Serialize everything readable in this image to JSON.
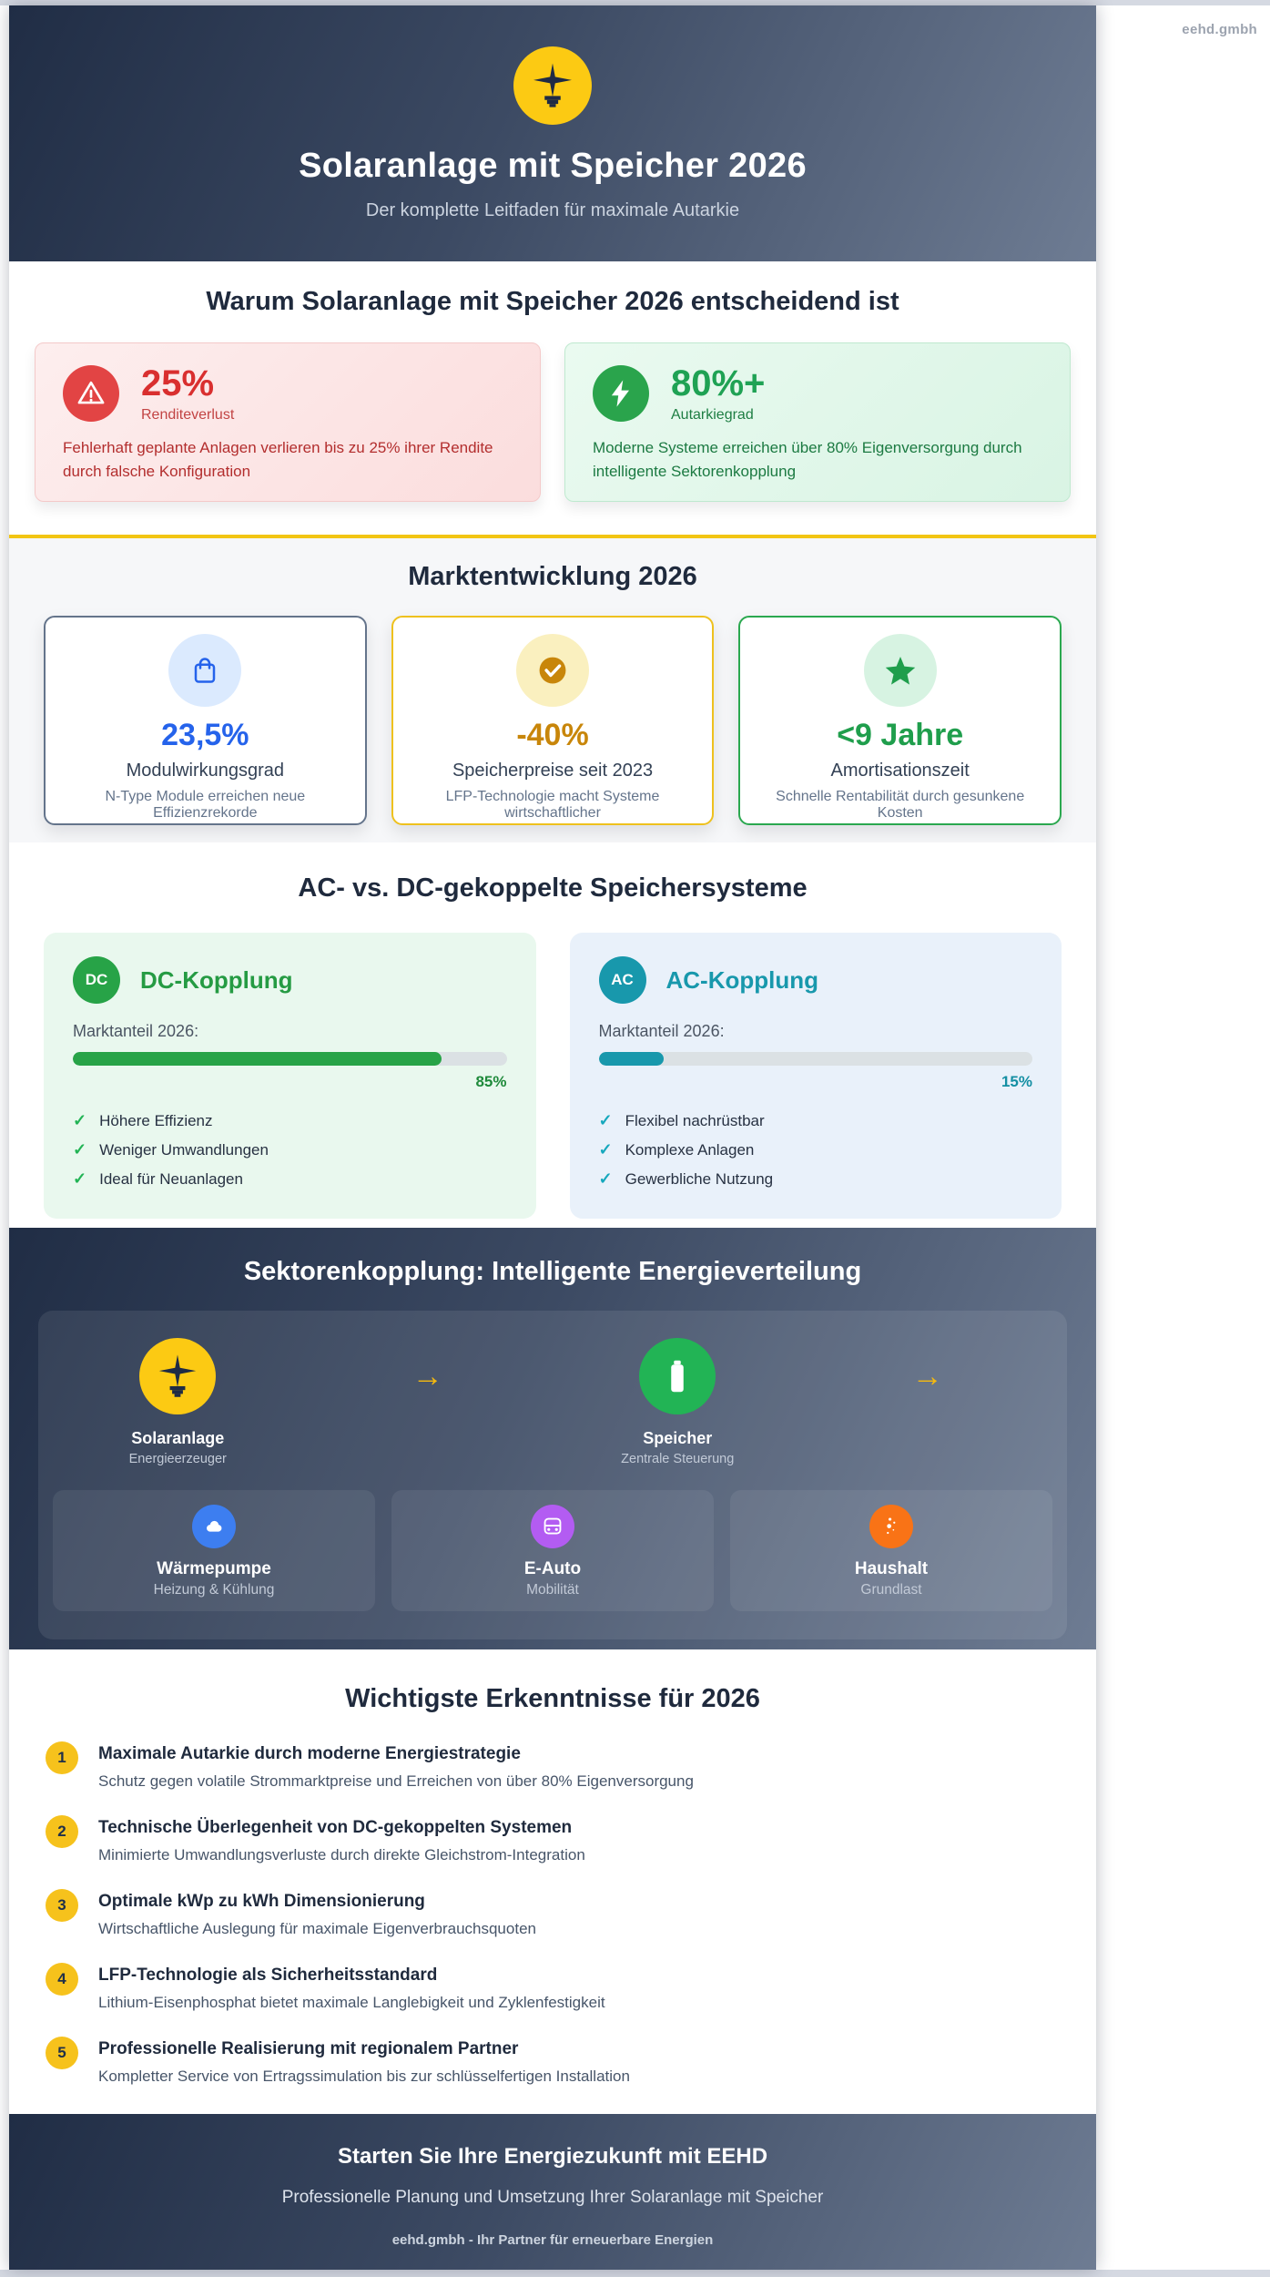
{
  "watermark": "eehd.gmbh",
  "glyphs": {
    "check": "✓",
    "arrow": "→"
  },
  "header": {
    "title": "Solaranlage mit Speicher 2026",
    "subtitle": "Der komplette Leitfaden für maximale Autarkie"
  },
  "why": {
    "heading": "Warum Solaranlage mit Speicher 2026 entscheidend ist",
    "risk": {
      "value": "25%",
      "label": "Renditeverlust",
      "desc": "Fehlerhaft geplante Anlagen verlieren bis zu 25% ihrer Rendite durch falsche Konfiguration"
    },
    "success": {
      "value": "80%+",
      "label": "Autarkiegrad",
      "desc": "Moderne Systeme erreichen über 80% Eigenversorgung durch intelligente Sektorenkopplung"
    }
  },
  "market": {
    "heading": "Marktentwicklung 2026",
    "cards": [
      {
        "value": "23,5%",
        "label": "Modulwirkungsgrad",
        "desc": "N-Type Module erreichen neue Effizienzrekorde"
      },
      {
        "value": "-40%",
        "label": "Speicherpreise seit 2023",
        "desc": "LFP-Technologie macht Systeme wirtschaftlicher"
      },
      {
        "value": "<9 Jahre",
        "label": "Amortisationszeit",
        "desc": "Schnelle Rentabilität durch gesunkene Kosten"
      }
    ]
  },
  "coupling": {
    "heading": "AC- vs. DC-gekoppelte Speichersysteme",
    "dc": {
      "badge": "DC",
      "title": "DC-Kopplung",
      "share_label": "Marktanteil 2026:",
      "share_pct": 85,
      "share_text": "85%",
      "features": [
        "Höhere Effizienz",
        "Weniger Umwandlungen",
        "Ideal für Neuanlagen"
      ]
    },
    "ac": {
      "badge": "AC",
      "title": "AC-Kopplung",
      "share_label": "Marktanteil 2026:",
      "share_pct": 15,
      "share_text": "15%",
      "features": [
        "Flexibel nachrüstbar",
        "Komplexe Anlagen",
        "Gewerbliche Nutzung"
      ]
    }
  },
  "sector": {
    "heading": "Sektorenkopplung: Intelligente Energieverteilung",
    "sources": [
      {
        "label": "Solaranlage",
        "sub": "Energieerzeuger"
      },
      {
        "label": "Speicher",
        "sub": "Zentrale Steuerung"
      }
    ],
    "consumers": [
      {
        "label": "Wärmepumpe",
        "sub": "Heizung & Kühlung"
      },
      {
        "label": "E-Auto",
        "sub": "Mobilität"
      },
      {
        "label": "Haushalt",
        "sub": "Grundlast"
      }
    ]
  },
  "insights": {
    "heading": "Wichtigste Erkenntnisse für 2026",
    "items": [
      {
        "num": "1",
        "title": "Maximale Autarkie durch moderne Energiestrategie",
        "desc": "Schutz gegen volatile Strommarktpreise und Erreichen von über 80% Eigenversorgung"
      },
      {
        "num": "2",
        "title": "Technische Überlegenheit von DC-gekoppelten Systemen",
        "desc": "Minimierte Umwandlungsverluste durch direkte Gleichstrom-Integration"
      },
      {
        "num": "3",
        "title": "Optimale kWp zu kWh Dimensionierung",
        "desc": "Wirtschaftliche Auslegung für maximale Eigenverbrauchsquoten"
      },
      {
        "num": "4",
        "title": "LFP-Technologie als Sicherheitsstandard",
        "desc": "Lithium-Eisenphosphat bietet maximale Langlebigkeit und Zyklenfestigkeit"
      },
      {
        "num": "5",
        "title": "Professionelle Realisierung mit regionalem Partner",
        "desc": "Kompletter Service von Ertragssimulation bis zur schlüsselfertigen Installation"
      }
    ]
  },
  "footer": {
    "title": "Starten Sie Ihre Energiezukunft mit EEHD",
    "subtitle": "Professionelle Planung und Umsetzung Ihrer Solaranlage mit Speicher",
    "tagline": "eehd.gmbh - Ihr Partner für erneuerbare Energien"
  },
  "colors": {
    "yellow": "#f6c21c",
    "red": "#e24444",
    "green": "#27a347",
    "teal": "#1898ac",
    "blue": "#2563eb",
    "amber": "#c8860a",
    "purple": "#b35cf2",
    "orange": "#f97316",
    "navy": "#1f2a3d",
    "divider_yellow": "#f2c513"
  }
}
